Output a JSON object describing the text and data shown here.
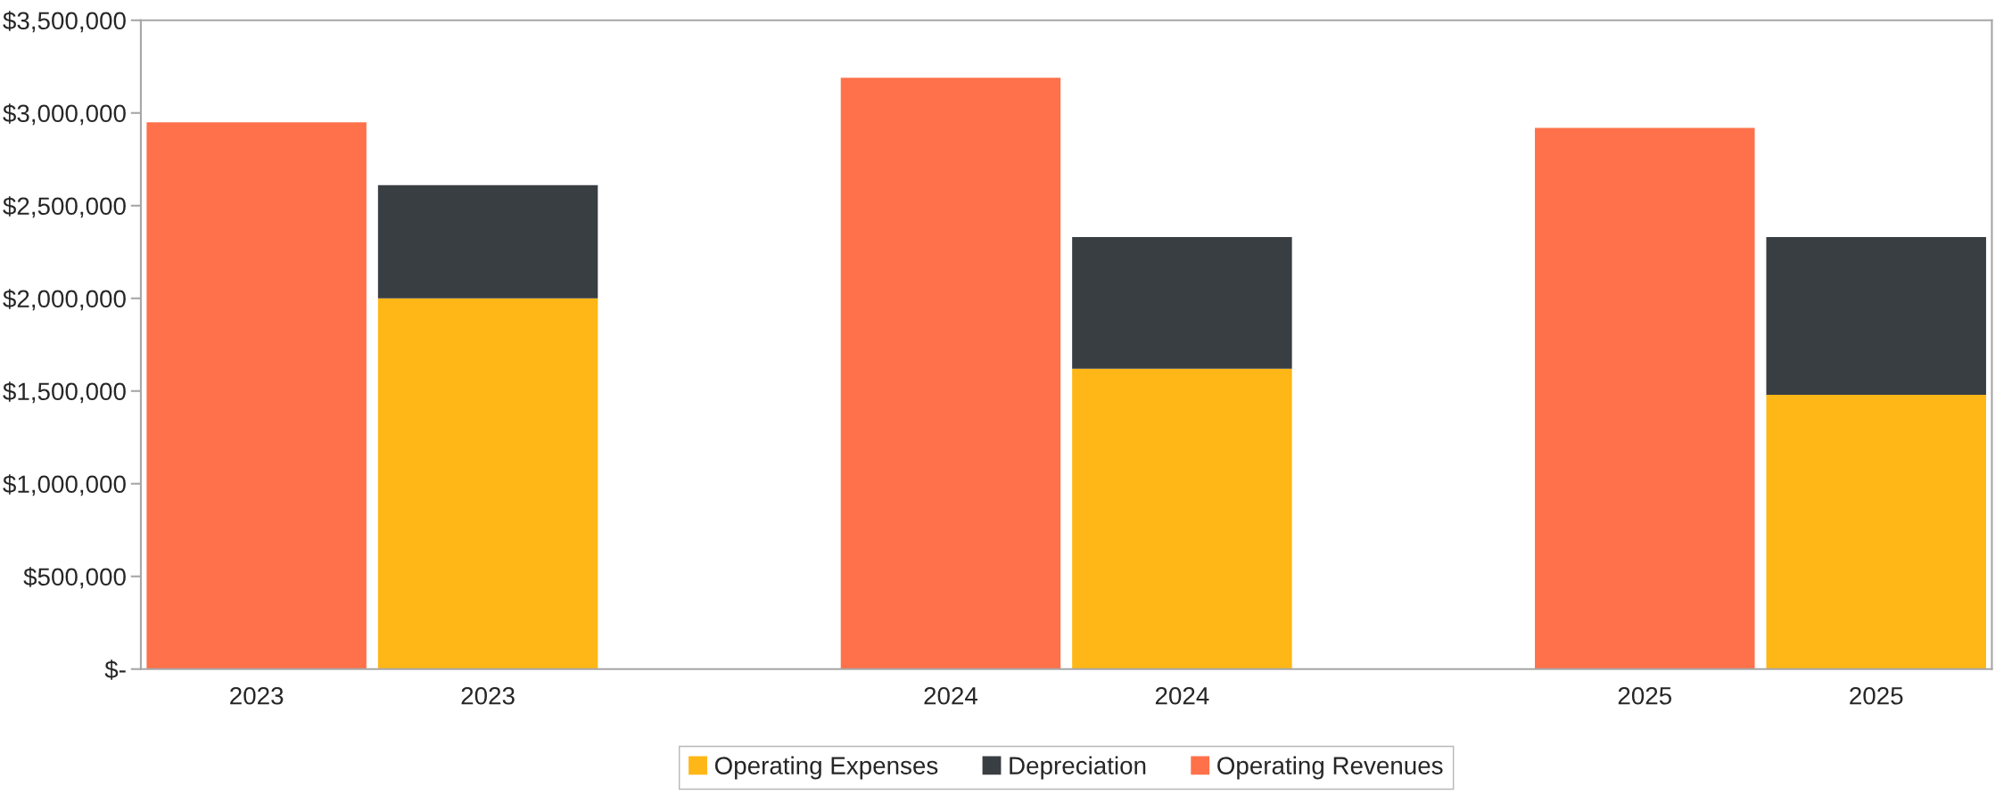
{
  "chart_data": {
    "type": "bar",
    "stacked": true,
    "categories": [
      "2023",
      "2023",
      null,
      "2024",
      "2024",
      null,
      "2025",
      "2025"
    ],
    "series": [
      {
        "name": "Operating Expenses",
        "color": "#feb716",
        "values": [
          null,
          2000000,
          null,
          null,
          1620000,
          null,
          null,
          1480000
        ]
      },
      {
        "name": "Depreciation",
        "color": "#393e43",
        "values": [
          null,
          610000,
          null,
          null,
          710000,
          null,
          null,
          850000
        ]
      },
      {
        "name": "Operating Revenues",
        "color": "#fe714a",
        "values": [
          2950000,
          null,
          null,
          3190000,
          null,
          null,
          2920000,
          null
        ]
      }
    ],
    "ylim": [
      0,
      3500000
    ],
    "yticks": [
      {
        "value": 0,
        "label": "$-"
      },
      {
        "value": 500000,
        "label": "$500,000"
      },
      {
        "value": 1000000,
        "label": "$1,000,000"
      },
      {
        "value": 1500000,
        "label": "$1,500,000"
      },
      {
        "value": 2000000,
        "label": "$2,000,000"
      },
      {
        "value": 2500000,
        "label": "$2,500,000"
      },
      {
        "value": 3000000,
        "label": "$3,000,000"
      },
      {
        "value": 3500000,
        "label": "$3,500,000"
      }
    ],
    "grid": false,
    "legend": "bottom"
  }
}
